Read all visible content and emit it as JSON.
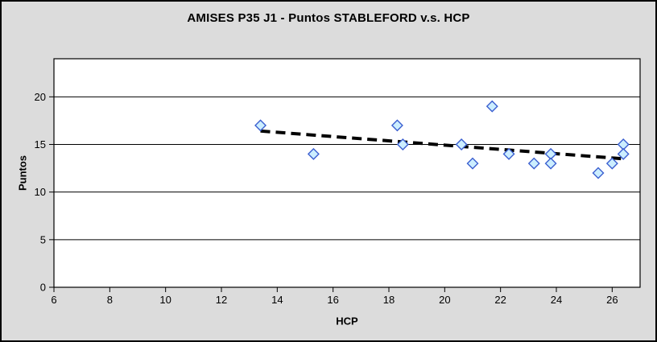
{
  "window": {
    "background": "#dcdcdc",
    "frame_border": "#000000"
  },
  "chart_data": {
    "type": "scatter",
    "title": "AMISES P35 J1 - Puntos STABLEFORD v.s. HCP",
    "xlabel": "HCP",
    "ylabel": "Puntos",
    "xlim": [
      6,
      27
    ],
    "ylim": [
      0,
      24
    ],
    "x_ticks": [
      6,
      8,
      10,
      12,
      14,
      16,
      18,
      20,
      22,
      24,
      26
    ],
    "y_ticks": [
      0,
      5,
      10,
      15,
      20
    ],
    "grid": "horizontal-solid-black",
    "legend": "none",
    "plot_bg": "#ffffff",
    "gridline_color": "#000000",
    "series": [
      {
        "name": "Puntos STABLEFORD",
        "marker": "diamond",
        "marker_fill": "#cceeff",
        "marker_border": "#3b5fd0",
        "points": [
          [
            13.4,
            17
          ],
          [
            15.3,
            14
          ],
          [
            18.3,
            17
          ],
          [
            18.5,
            15
          ],
          [
            20.6,
            15
          ],
          [
            21.0,
            13
          ],
          [
            21.7,
            19
          ],
          [
            22.3,
            14
          ],
          [
            23.2,
            13
          ],
          [
            23.8,
            14
          ],
          [
            23.8,
            13
          ],
          [
            25.5,
            12
          ],
          [
            26.0,
            13
          ],
          [
            26.4,
            15
          ],
          [
            26.4,
            14
          ]
        ]
      }
    ],
    "trendline": {
      "type": "linear",
      "style": "dashed",
      "color": "#000000",
      "slope": -0.2246,
      "intercept": 19.42,
      "x_start": 13.4,
      "x_end": 26.42
    }
  }
}
